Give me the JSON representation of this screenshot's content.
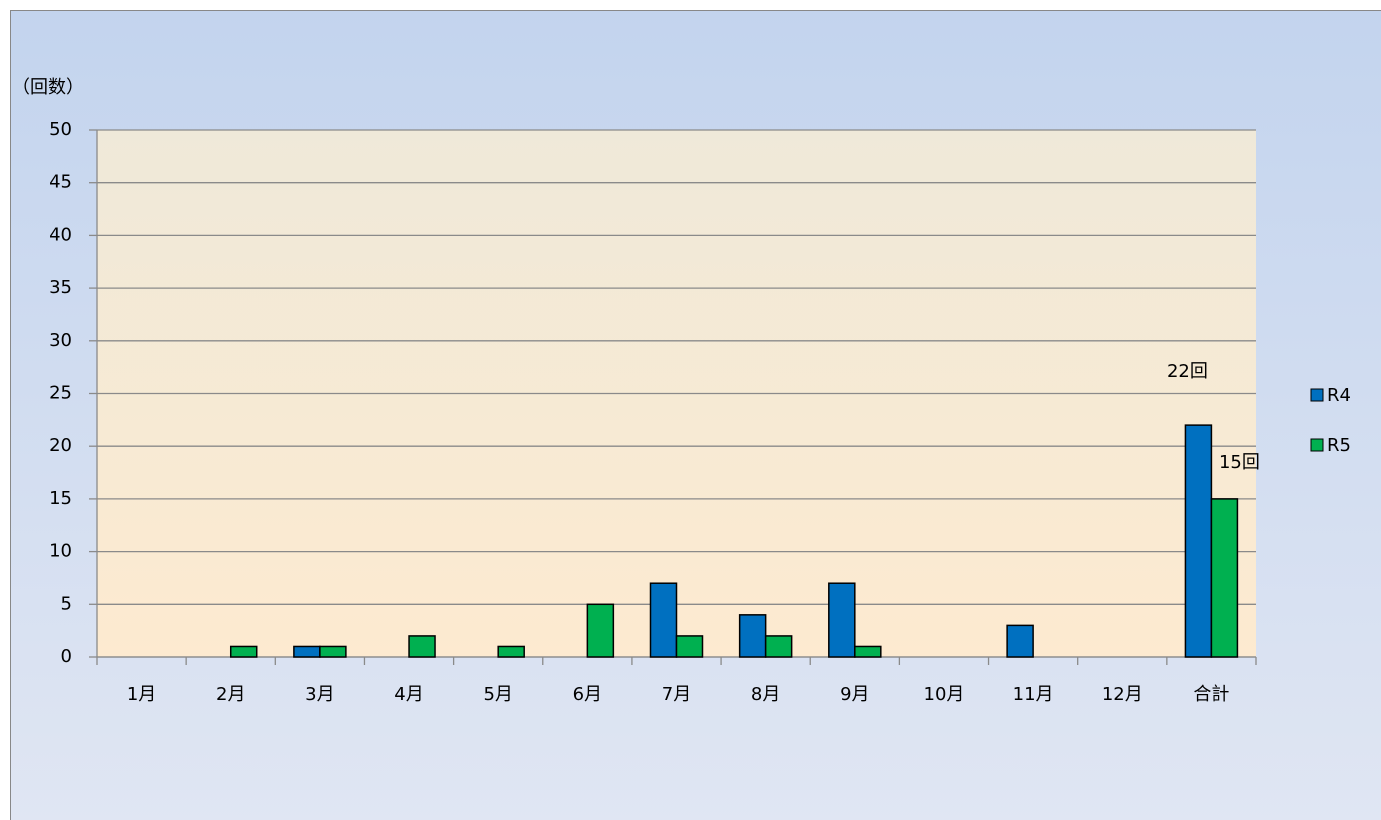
{
  "chart_data": {
    "type": "bar",
    "y_axis_label": "（回数）",
    "categories": [
      "1月",
      "2月",
      "3月",
      "4月",
      "5月",
      "6月",
      "7月",
      "8月",
      "9月",
      "10月",
      "11月",
      "12月",
      "合計"
    ],
    "series": [
      {
        "name": "R4",
        "color": "#0070c0",
        "values": [
          0,
          0,
          1,
          0,
          0,
          0,
          7,
          4,
          7,
          0,
          3,
          0,
          22
        ],
        "value_labels": [
          null,
          null,
          null,
          null,
          null,
          null,
          null,
          null,
          null,
          null,
          null,
          null,
          "22回"
        ]
      },
      {
        "name": "R5",
        "color": "#00b050",
        "values": [
          0,
          1,
          1,
          2,
          1,
          5,
          2,
          2,
          1,
          0,
          0,
          0,
          15
        ],
        "value_labels": [
          null,
          null,
          null,
          null,
          null,
          null,
          null,
          null,
          null,
          null,
          null,
          null,
          "15回"
        ]
      }
    ],
    "ylim": [
      0,
      50
    ],
    "yticks": [
      0,
      5,
      10,
      15,
      20,
      25,
      30,
      35,
      40,
      45,
      50
    ],
    "grid": true,
    "legend": "right"
  }
}
